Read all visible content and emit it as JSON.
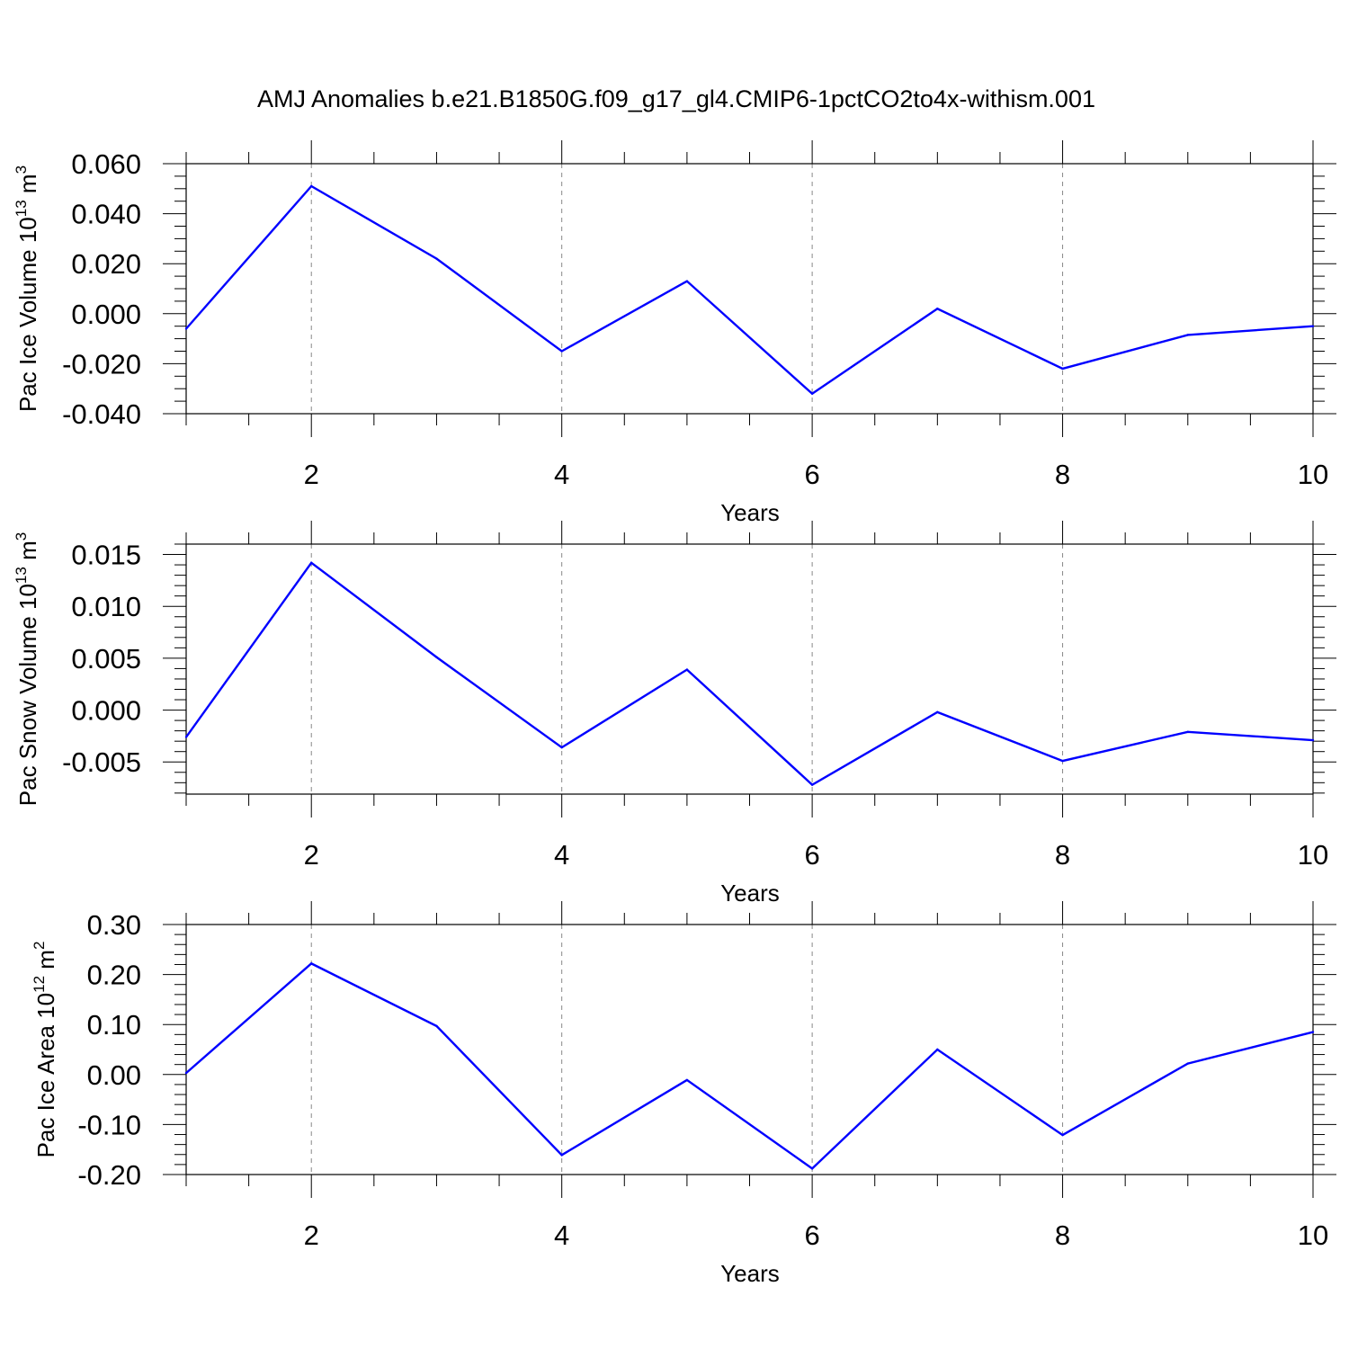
{
  "title": "AMJ Anomalies b.e21.B1850G.f09_g17_gl4.CMIP6-1pctCO2to4x-withism.001",
  "line_color": "#0000ff",
  "chart_data": [
    {
      "type": "line",
      "xlabel": "Years",
      "ylabel": {
        "prefix": "Pac Ice Volume 10",
        "exp": "13",
        "unit": " m",
        "unit_exp": "3"
      },
      "x": [
        1,
        2,
        3,
        4,
        5,
        6,
        7,
        8,
        9,
        10
      ],
      "values": [
        -0.006,
        0.051,
        0.022,
        -0.015,
        0.013,
        -0.032,
        0.002,
        -0.022,
        -0.0085,
        -0.005
      ],
      "xlim": [
        1,
        10
      ],
      "ylim": [
        -0.04,
        0.06
      ],
      "xticks": [
        2,
        4,
        6,
        8,
        10
      ],
      "xtick_labels": [
        "2",
        "4",
        "6",
        "8",
        "10"
      ],
      "yticks": [
        -0.04,
        -0.02,
        0.0,
        0.02,
        0.04,
        0.06
      ],
      "ytick_labels": [
        "-0.040",
        "-0.020",
        "0.000",
        "0.020",
        "0.040",
        "0.060"
      ],
      "y_minor_step": 0.005,
      "grid": "vertical-dashed"
    },
    {
      "type": "line",
      "xlabel": "Years",
      "ylabel": {
        "prefix": "Pac Snow Volume 10",
        "exp": "13",
        "unit": " m",
        "unit_exp": "3"
      },
      "x": [
        1,
        2,
        3,
        4,
        5,
        6,
        7,
        8,
        9,
        10
      ],
      "values": [
        -0.0026,
        0.0142,
        0.0051,
        -0.0036,
        0.0039,
        -0.0072,
        -0.0002,
        -0.0049,
        -0.0021,
        -0.0029
      ],
      "xlim": [
        1,
        10
      ],
      "ylim": [
        -0.0081,
        0.016
      ],
      "xticks": [
        2,
        4,
        6,
        8,
        10
      ],
      "xtick_labels": [
        "2",
        "4",
        "6",
        "8",
        "10"
      ],
      "yticks": [
        -0.005,
        0.0,
        0.005,
        0.01,
        0.015
      ],
      "ytick_labels": [
        "-0.005",
        "0.000",
        "0.005",
        "0.010",
        "0.015"
      ],
      "y_minor_step": 0.001,
      "grid": "vertical-dashed"
    },
    {
      "type": "line",
      "xlabel": "Years",
      "ylabel": {
        "prefix": "Pac Ice Area 10",
        "exp": "12",
        "unit": " m",
        "unit_exp": "2"
      },
      "x": [
        1,
        2,
        3,
        4,
        5,
        6,
        7,
        8,
        9,
        10
      ],
      "values": [
        0.003,
        0.222,
        0.097,
        -0.161,
        -0.011,
        -0.188,
        0.05,
        -0.121,
        0.022,
        0.085
      ],
      "xlim": [
        1,
        10
      ],
      "ylim": [
        -0.2,
        0.3
      ],
      "xticks": [
        2,
        4,
        6,
        8,
        10
      ],
      "xtick_labels": [
        "2",
        "4",
        "6",
        "8",
        "10"
      ],
      "yticks": [
        -0.2,
        -0.1,
        0.0,
        0.1,
        0.2,
        0.3
      ],
      "ytick_labels": [
        "-0.20",
        "-0.10",
        "0.00",
        "0.10",
        "0.20",
        "0.30"
      ],
      "y_minor_step": 0.02,
      "grid": "vertical-dashed"
    }
  ]
}
